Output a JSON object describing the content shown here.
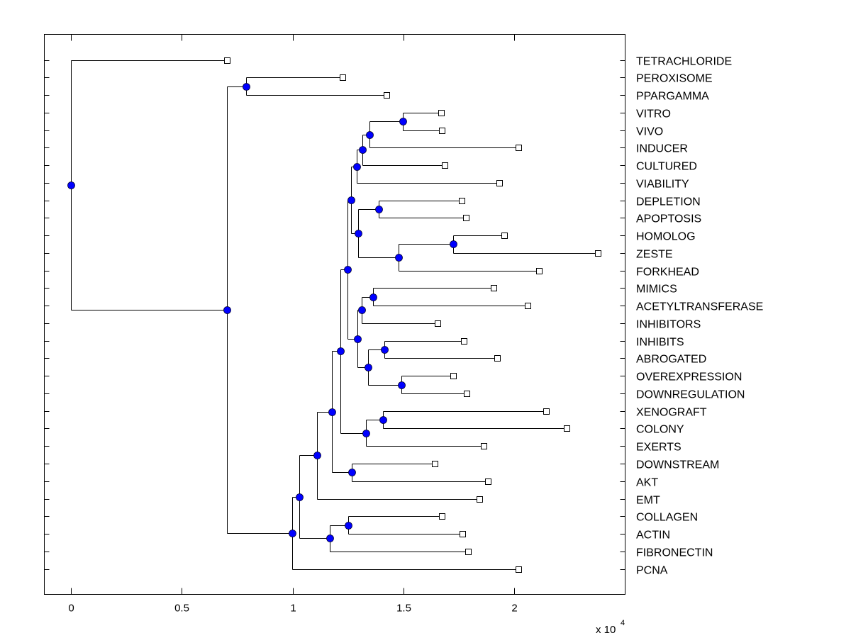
{
  "chart_data": {
    "type": "dendrogram",
    "title": "",
    "xlabel": "",
    "ylabel": "",
    "x_multiplier_label": "x 10",
    "x_multiplier_exponent": "4",
    "xlim": [
      -0.12,
      2.5
    ],
    "xticks": [
      0,
      0.5,
      1,
      1.5,
      2
    ],
    "xtick_labels": [
      "0",
      "0.5",
      "1",
      "1.5",
      "2"
    ],
    "grid": false,
    "node_color": "#0000ff",
    "line_color": "#000000",
    "tree": {
      "height": 0,
      "children": [
        {
          "label": "TETRACHLORIDE",
          "height": 0.703
        },
        {
          "height": 0.703,
          "children": [
            {
              "height": 0.789,
              "children": [
                {
                  "label": "PEROXISOME",
                  "height": 1.224
                },
                {
                  "label": "PPARGAMMA",
                  "height": 1.425
                }
              ]
            },
            {
              "height": 0.997,
              "children": [
                {
                  "height": 1.029,
                  "children": [
                    {
                      "height": 1.109,
                      "children": [
                        {
                          "height": 1.176,
                          "children": [
                            {
                              "height": 1.214,
                              "children": [
                                {
                                  "height": 1.249,
                                  "children": [
                                    {
                                      "height": 1.265,
                                      "children": [
                                        {
                                          "height": 1.288,
                                          "children": [
                                            {
                                              "height": 1.316,
                                              "children": [
                                                {
                                                  "height": 1.348,
                                                  "children": [
                                                    {
                                                      "height": 1.498,
                                                      "children": [
                                                        {
                                                          "label": "VITRO",
                                                          "height": 1.671
                                                        },
                                                        {
                                                          "label": "VIVO",
                                                          "height": 1.674
                                                        }
                                                      ]
                                                    },
                                                    {
                                                      "label": "INDUCER",
                                                      "height": 2.019
                                                    }
                                                  ]
                                                },
                                                {
                                                  "label": "CULTURED",
                                                  "height": 1.687
                                                }
                                              ]
                                            },
                                            {
                                              "label": "VIABILITY",
                                              "height": 1.933
                                            }
                                          ]
                                        },
                                        {
                                          "height": 1.297,
                                          "children": [
                                            {
                                              "height": 1.387,
                                              "children": [
                                                {
                                                  "label": "DEPLETION",
                                                  "height": 1.764
                                                },
                                                {
                                                  "label": "APOPTOSIS",
                                                  "height": 1.783
                                                }
                                              ]
                                            },
                                            {
                                              "height": 1.479,
                                              "children": [
                                                {
                                                  "height": 1.725,
                                                  "children": [
                                                    {
                                                      "label": "HOMOLOG",
                                                      "height": 1.955
                                                    },
                                                    {
                                                      "label": "ZESTE",
                                                      "height": 2.377
                                                    }
                                                  ]
                                                },
                                                {
                                                  "label": "FORKHEAD",
                                                  "height": 2.112
                                                }
                                              ]
                                            }
                                          ]
                                        }
                                      ]
                                    },
                                    {
                                      "height": 1.291,
                                      "children": [
                                        {
                                          "height": 1.313,
                                          "children": [
                                            {
                                              "height": 1.364,
                                              "children": [
                                                {
                                                  "label": "MIMICS",
                                                  "height": 1.907
                                                },
                                                {
                                                  "label": "ACETYLTRANSFERASE",
                                                  "height": 2.061
                                                }
                                              ]
                                            },
                                            {
                                              "label": "INHIBITORS",
                                              "height": 1.655
                                            }
                                          ]
                                        },
                                        {
                                          "height": 1.339,
                                          "children": [
                                            {
                                              "height": 1.415,
                                              "children": [
                                                {
                                                  "label": "INHIBITS",
                                                  "height": 1.773
                                                },
                                                {
                                                  "label": "ABROGATED",
                                                  "height": 1.923
                                                }
                                              ]
                                            },
                                            {
                                              "height": 1.492,
                                              "children": [
                                                {
                                                  "label": "OVEREXPRESSION",
                                                  "height": 1.725
                                                },
                                                {
                                                  "label": "DOWNREGULATION",
                                                  "height": 1.786
                                                }
                                              ]
                                            }
                                          ]
                                        }
                                      ]
                                    }
                                  ]
                                },
                                {
                                  "height": 1.332,
                                  "children": [
                                    {
                                      "height": 1.406,
                                      "children": [
                                        {
                                          "label": "XENOGRAFT",
                                          "height": 2.144
                                        },
                                        {
                                          "label": "COLONY",
                                          "height": 2.236
                                        }
                                      ]
                                    },
                                    {
                                      "label": "EXERTS",
                                      "height": 1.863
                                    }
                                  ]
                                }
                              ]
                            },
                            {
                              "height": 1.268,
                              "children": [
                                {
                                  "label": "DOWNSTREAM",
                                  "height": 1.642
                                },
                                {
                                  "label": "AKT",
                                  "height": 1.882
                                }
                              ]
                            }
                          ]
                        },
                        {
                          "label": "EMT",
                          "height": 1.843
                        }
                      ]
                    },
                    {
                      "height": 1.169,
                      "children": [
                        {
                          "height": 1.252,
                          "children": [
                            {
                              "label": "COLLAGEN",
                              "height": 1.674
                            },
                            {
                              "label": "ACTIN",
                              "height": 1.767
                            }
                          ]
                        },
                        {
                          "label": "FIBRONECTIN",
                          "height": 1.792
                        }
                      ]
                    }
                  ]
                },
                {
                  "label": "PCNA",
                  "height": 2.019
                }
              ]
            }
          ]
        }
      ]
    }
  }
}
